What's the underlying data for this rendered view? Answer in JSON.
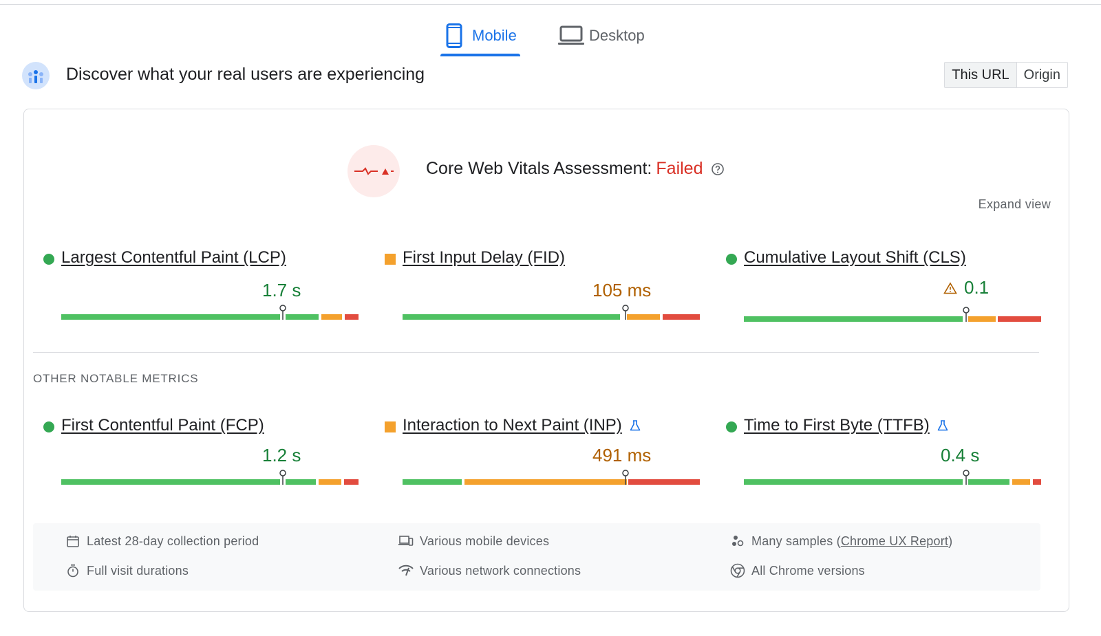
{
  "tabs": [
    {
      "label": "Mobile",
      "icon": "smartphone-icon",
      "selected": true
    },
    {
      "label": "Desktop",
      "icon": "laptop-icon",
      "selected": false
    }
  ],
  "header": {
    "title": "Discover what your real users are experiencing",
    "toggle": {
      "this_url": "This URL",
      "origin": "Origin",
      "selected": "This URL"
    }
  },
  "assessment": {
    "label": "Core Web Vitals Assessment:",
    "status": "Failed",
    "status_color": "#d93025",
    "expand_label": "Expand view"
  },
  "core_metrics": [
    {
      "name": "Largest Contentful Paint (LCP)",
      "value": "1.7 s",
      "rating": "good",
      "experimental": false,
      "warning": false
    },
    {
      "name": "First Input Delay (FID)",
      "value": "105 ms",
      "rating": "needs-improvement",
      "experimental": false,
      "warning": false
    },
    {
      "name": "Cumulative Layout Shift (CLS)",
      "value": "0.1",
      "rating": "good",
      "experimental": false,
      "warning": true
    }
  ],
  "other_section_label": "OTHER NOTABLE METRICS",
  "other_metrics": [
    {
      "name": "First Contentful Paint (FCP)",
      "value": "1.2 s",
      "rating": "good",
      "experimental": false,
      "warning": false
    },
    {
      "name": "Interaction to Next Paint (INP)",
      "value": "491 ms",
      "rating": "needs-improvement",
      "experimental": true,
      "warning": false
    },
    {
      "name": "Time to First Byte (TTFB)",
      "value": "0.4 s",
      "rating": "good",
      "experimental": true,
      "warning": false
    }
  ],
  "info": {
    "collection_period": "Latest 28-day collection period",
    "visit_durations": "Full visit durations",
    "devices": "Various mobile devices",
    "network": "Various network connections",
    "samples_prefix": "Many samples (",
    "samples_link": "Chrome UX Report",
    "samples_suffix": ")",
    "chrome_versions": "All Chrome versions"
  },
  "colors": {
    "accent": "#1a73e8",
    "good": "#188038",
    "needs_improvement": "#b06000",
    "poor": "#d93025"
  }
}
